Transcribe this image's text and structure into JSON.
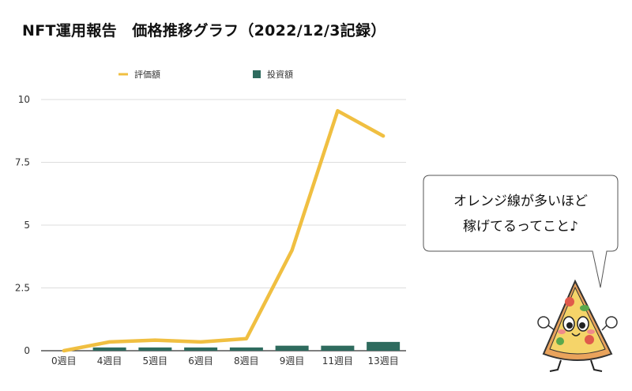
{
  "title": "NFT運用報告　価格推移グラフ（2022/12/3記録）",
  "speech_bubble": {
    "line1": "オレンジ線が多いほど",
    "line2": "稼げてるってこと♪"
  },
  "mascot_icon": "pizza-slice-character",
  "chart_data": {
    "type": "bar+line",
    "categories": [
      "0週目",
      "4週目",
      "5週目",
      "6週目",
      "8週目",
      "9週目",
      "11週目",
      "13週目"
    ],
    "series": [
      {
        "name": "評価額",
        "type": "line",
        "color": "#f0bf41",
        "values": [
          0,
          0.35,
          0.42,
          0.35,
          0.48,
          4.0,
          9.55,
          8.55
        ]
      },
      {
        "name": "投資額",
        "type": "bar",
        "color": "#2e6b5e",
        "values": [
          0,
          0.13,
          0.13,
          0.13,
          0.13,
          0.2,
          0.2,
          0.35
        ]
      }
    ],
    "yticks": [
      "0",
      "2.5",
      "5",
      "7.5",
      "10"
    ],
    "ylim": [
      0,
      10
    ],
    "grid": true,
    "legend_position": "top"
  }
}
